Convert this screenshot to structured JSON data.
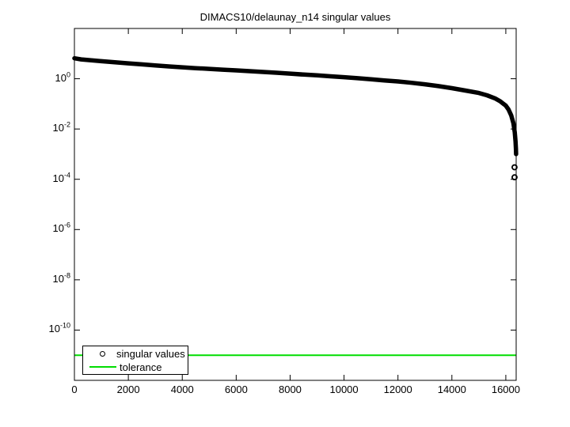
{
  "figure": {
    "background": "#ffffff"
  },
  "chart_data": {
    "type": "line",
    "title": "DIMACS10/delaunay_n14 singular values",
    "xlabel": "",
    "ylabel": "",
    "x_scale": "linear",
    "y_scale": "log",
    "xlim": [
      0,
      16384
    ],
    "ylim": [
      1e-12,
      100
    ],
    "x_ticks": [
      0,
      2000,
      4000,
      6000,
      8000,
      10000,
      12000,
      14000,
      16000
    ],
    "y_tick_exponents": [
      0,
      -2,
      -4,
      -6,
      -8,
      -10
    ],
    "grid": false,
    "legend_position": "southwest",
    "axis_color": "#000000",
    "series": [
      {
        "name": "singular values",
        "style": "marker-line",
        "marker": "circle",
        "color": "#000000",
        "points": [
          [
            0,
            6.5
          ],
          [
            250,
            5.9
          ],
          [
            500,
            5.55
          ],
          [
            1000,
            5.0
          ],
          [
            1500,
            4.5
          ],
          [
            2000,
            4.1
          ],
          [
            2500,
            3.73
          ],
          [
            3000,
            3.4
          ],
          [
            3500,
            3.1
          ],
          [
            4000,
            2.85
          ],
          [
            4500,
            2.64
          ],
          [
            5000,
            2.46
          ],
          [
            5500,
            2.3
          ],
          [
            6000,
            2.15
          ],
          [
            6500,
            2.0
          ],
          [
            7000,
            1.86
          ],
          [
            7500,
            1.73
          ],
          [
            8000,
            1.6
          ],
          [
            8500,
            1.47
          ],
          [
            9000,
            1.36
          ],
          [
            9500,
            1.25
          ],
          [
            10000,
            1.15
          ],
          [
            10500,
            1.05
          ],
          [
            11000,
            0.95
          ],
          [
            11500,
            0.86
          ],
          [
            12000,
            0.78
          ],
          [
            12500,
            0.69
          ],
          [
            13000,
            0.6
          ],
          [
            13500,
            0.51
          ],
          [
            14000,
            0.42
          ],
          [
            14500,
            0.34
          ],
          [
            15000,
            0.27
          ],
          [
            15300,
            0.22
          ],
          [
            15600,
            0.165
          ],
          [
            15800,
            0.125
          ],
          [
            16000,
            0.085
          ],
          [
            16100,
            0.06
          ],
          [
            16200,
            0.035
          ],
          [
            16280,
            0.017
          ],
          [
            16330,
            0.0075
          ],
          [
            16360,
            0.0032
          ],
          [
            16375,
            0.0016
          ],
          [
            16381,
            0.001
          ]
        ],
        "tail_points": [
          [
            16382,
            0.0003
          ],
          [
            16383,
            0.00012
          ]
        ]
      },
      {
        "name": "tolerance",
        "style": "hline",
        "color": "#00dd00",
        "value": 1e-11
      }
    ]
  },
  "legend": {
    "items": [
      {
        "label": "singular values",
        "marker": "circle",
        "color": "#000000"
      },
      {
        "label": "tolerance",
        "marker": "line",
        "color": "#00dd00"
      }
    ]
  }
}
